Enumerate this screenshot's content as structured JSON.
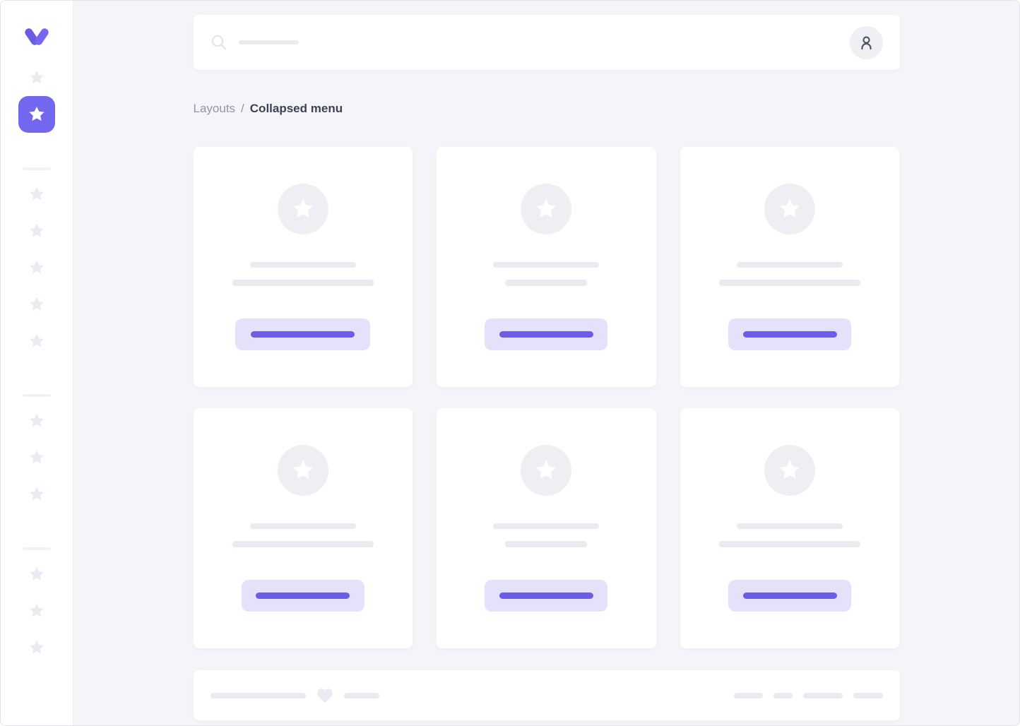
{
  "app": {
    "name": "collapsed-menu-layout"
  },
  "colors": {
    "accent": "#7367f0",
    "accent_button_line": "#6b5de8",
    "accent_button_bg": "#e5e1fb",
    "placeholder_gray": "#e9ebf0",
    "background": "#f5f5f9"
  },
  "sidebar": {
    "logo_icon": "v-logo-icon",
    "groups": [
      {
        "items": [
          {
            "icon": "star-icon",
            "active": false
          },
          {
            "icon": "star-icon",
            "active": true
          }
        ]
      },
      {
        "items": [
          {
            "icon": "star-icon",
            "active": false
          },
          {
            "icon": "star-icon",
            "active": false
          },
          {
            "icon": "star-icon",
            "active": false
          },
          {
            "icon": "star-icon",
            "active": false
          },
          {
            "icon": "star-icon",
            "active": false
          }
        ]
      },
      {
        "items": [
          {
            "icon": "star-icon",
            "active": false
          },
          {
            "icon": "star-icon",
            "active": false
          },
          {
            "icon": "star-icon",
            "active": false
          }
        ]
      },
      {
        "items": [
          {
            "icon": "star-icon",
            "active": false
          },
          {
            "icon": "star-icon",
            "active": false
          },
          {
            "icon": "star-icon",
            "active": false
          }
        ]
      }
    ]
  },
  "topbar": {
    "search": {
      "icon": "search-icon",
      "placeholder_line_w": 85
    },
    "avatar": {
      "icon": "person-icon"
    }
  },
  "breadcrumb": {
    "section": "Layouts",
    "separator": "/",
    "current": "Collapsed menu"
  },
  "cards": [
    {
      "icon": "star-icon",
      "title_line_w": 150,
      "subtitle_line_w": 200,
      "button_w": 191,
      "button_line_w": 147
    },
    {
      "icon": "star-icon",
      "title_line_w": 150,
      "subtitle_line_w": 116,
      "button_w": 174,
      "button_line_w": 133
    },
    {
      "icon": "star-icon",
      "title_line_w": 150,
      "subtitle_line_w": 200,
      "button_w": 174,
      "button_line_w": 133
    },
    {
      "icon": "star-icon",
      "title_line_w": 150,
      "subtitle_line_w": 200,
      "button_w": 174,
      "button_line_w": 133
    },
    {
      "icon": "star-icon",
      "title_line_w": 150,
      "subtitle_line_w": 116,
      "button_w": 174,
      "button_line_w": 133
    },
    {
      "icon": "star-icon",
      "title_line_w": 150,
      "subtitle_line_w": 200,
      "button_w": 174,
      "button_line_w": 133
    }
  ],
  "footer": {
    "left": [
      {
        "type": "line",
        "w": 135
      },
      {
        "type": "icon",
        "icon": "heart-icon"
      },
      {
        "type": "line",
        "w": 50
      }
    ],
    "right_lines": [
      41,
      27,
      56,
      42
    ]
  }
}
